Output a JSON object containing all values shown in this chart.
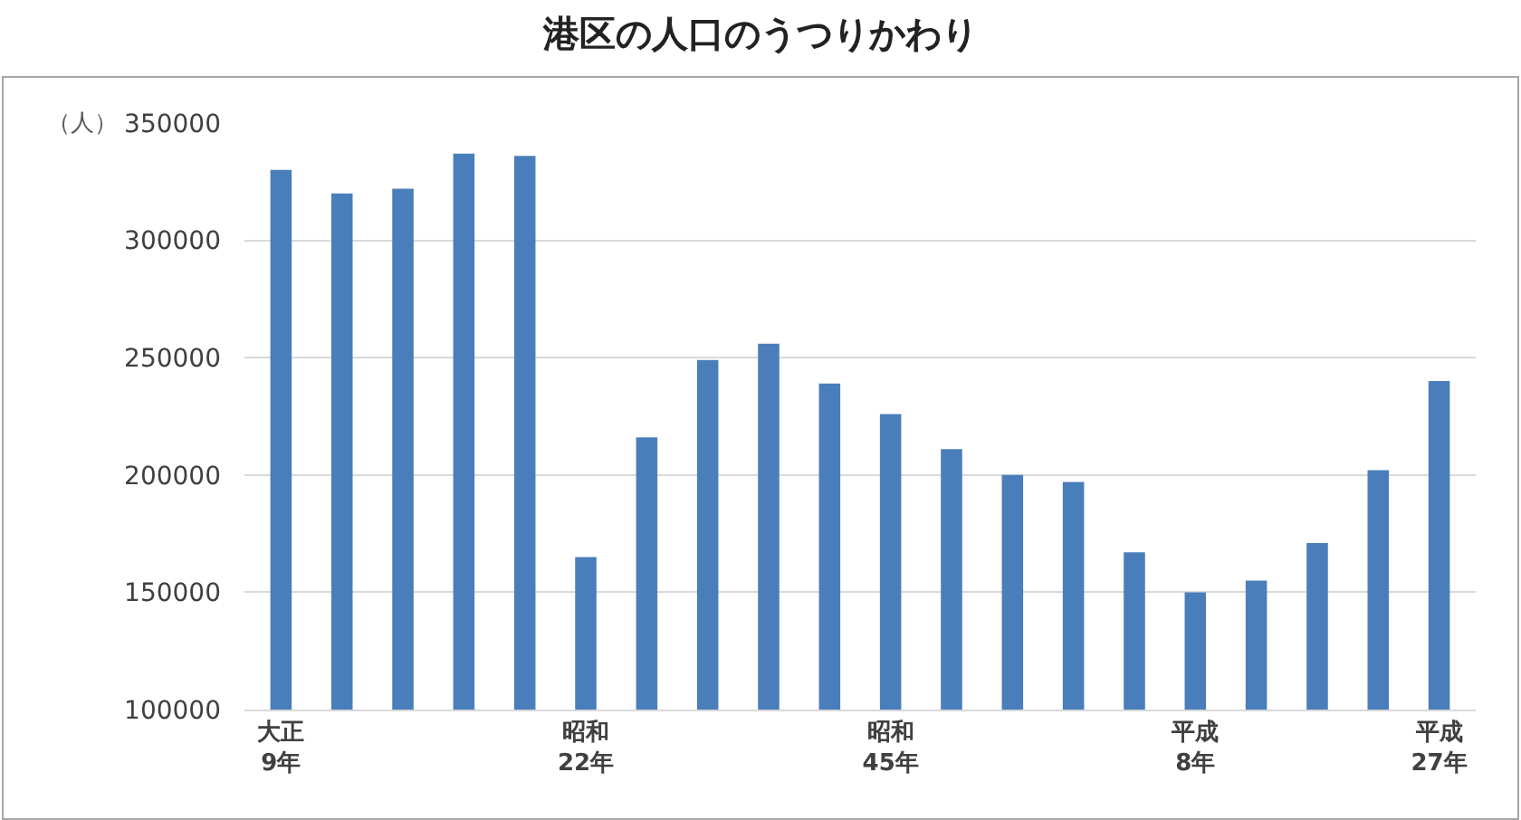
{
  "chart_data": {
    "type": "bar",
    "title": "港区の人口のうつりかわり",
    "ylabel": "（人）",
    "categories": [
      "大正\n9年",
      null,
      null,
      null,
      null,
      "昭和\n22年",
      null,
      null,
      null,
      null,
      "昭和\n45年",
      null,
      null,
      null,
      null,
      "平成\n8年",
      null,
      null,
      null,
      "平成\n27年"
    ],
    "values": [
      330000,
      320000,
      322000,
      337000,
      336000,
      165000,
      216000,
      249000,
      256000,
      239000,
      226000,
      211000,
      200000,
      197000,
      167000,
      150000,
      155000,
      171000,
      202000,
      240000
    ],
    "color": "#4a7ebb",
    "ylim": [
      100000,
      350000
    ],
    "yticks": [
      100000,
      150000,
      200000,
      250000,
      300000,
      350000
    ],
    "grid": "y"
  }
}
